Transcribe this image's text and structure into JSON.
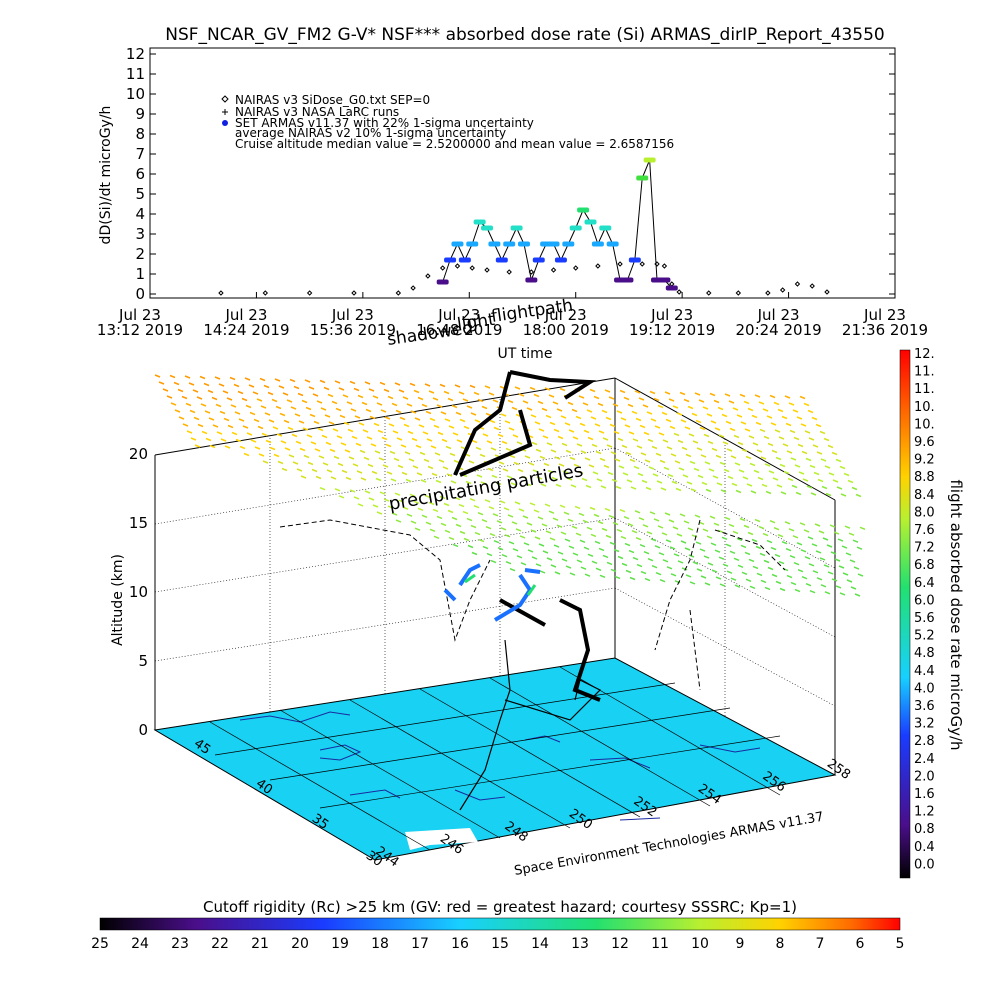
{
  "title": "NSF_NCAR_GV_FM2 G-V* NSF*** absorbed dose rate (Si) ARMAS_dirIP_Report_43550",
  "chart_data": [
    {
      "type": "scatter",
      "ylabel": "dD(Si)/dt microGy/h",
      "xlabel": "UT time",
      "ylim": [
        0,
        12
      ],
      "y_ticks": [
        "0",
        "1",
        "2",
        "3",
        "4",
        "5",
        "6",
        "7",
        "8",
        "9",
        "10",
        "11",
        "12"
      ],
      "x_ticks": [
        {
          "date": "Jul 23",
          "time": "13:12 2019"
        },
        {
          "date": "Jul 23",
          "time": "14:24 2019"
        },
        {
          "date": "Jul 23",
          "time": "15:36 2019"
        },
        {
          "date": "Jul 23",
          "time": "16:48 2019"
        },
        {
          "date": "Jul 23",
          "time": "18:00 2019"
        },
        {
          "date": "Jul 23",
          "time": "19:12 2019"
        },
        {
          "date": "Jul 23",
          "time": "20:24 2019"
        },
        {
          "date": "Jul 23",
          "time": "21:36 2019"
        }
      ],
      "legend": [
        "NAIRAS v3 SiDose_G0.txt SEP=0",
        "NAIRAS v3 NASA LaRC runs",
        "SET ARMAS v11.37 with 22% 1-sigma uncertainty",
        "average NAIRAS v2 10% 1-sigma uncertainty",
        "Cruise altitude median value = 2.5200000 and mean value = 2.6587156"
      ],
      "series": [
        {
          "name": "NAIRAS v3 SiDose_G0.txt SEP=0",
          "x": [
            "14:00",
            "14:30",
            "15:00",
            "15:30",
            "16:00",
            "16:10",
            "16:20",
            "16:30",
            "16:40",
            "16:50",
            "17:00",
            "17:15",
            "17:30",
            "17:45",
            "18:00",
            "18:15",
            "18:30",
            "18:45",
            "18:55",
            "19:00",
            "19:05",
            "19:10",
            "19:30",
            "19:50",
            "20:10",
            "20:20",
            "20:30",
            "20:40",
            "20:50"
          ],
          "values": [
            0.05,
            0.05,
            0.05,
            0.05,
            0.05,
            0.3,
            0.9,
            1.3,
            1.4,
            1.3,
            1.2,
            1.1,
            1.1,
            1.2,
            1.3,
            1.4,
            1.5,
            1.5,
            1.5,
            1.4,
            0.5,
            0.1,
            0.05,
            0.05,
            0.05,
            0.2,
            0.5,
            0.4,
            0.1
          ]
        },
        {
          "name": "SET ARMAS v11.37 with 22% 1-sigma uncertainty",
          "x": [
            "16:30",
            "16:35",
            "16:40",
            "16:45",
            "16:50",
            "16:55",
            "17:00",
            "17:05",
            "17:10",
            "17:15",
            "17:20",
            "17:25",
            "17:30",
            "17:35",
            "17:40",
            "17:45",
            "17:50",
            "17:55",
            "18:00",
            "18:05",
            "18:10",
            "18:15",
            "18:20",
            "18:25",
            "18:30",
            "18:35",
            "18:40",
            "18:45",
            "18:50",
            "18:55",
            "19:00",
            "19:05"
          ],
          "values": [
            0.6,
            1.7,
            2.5,
            1.7,
            2.5,
            3.6,
            3.3,
            2.5,
            1.7,
            2.5,
            3.3,
            2.5,
            0.7,
            1.7,
            2.5,
            2.5,
            1.7,
            2.5,
            3.3,
            4.2,
            3.6,
            2.5,
            3.3,
            2.5,
            0.7,
            0.7,
            1.7,
            5.8,
            6.7,
            0.7,
            0.7,
            0.3
          ]
        }
      ]
    },
    {
      "type": "scatter",
      "zlabel": "Altitude (km)",
      "z_ticks": [
        "0",
        "5",
        "10",
        "15",
        "20"
      ],
      "lat_ticks": [
        "30",
        "35",
        "40",
        "45"
      ],
      "lon_ticks": [
        "244",
        "246",
        "248",
        "250",
        "252",
        "254",
        "256",
        "258"
      ],
      "annotations": [
        "shadowed",
        "light",
        "flightpath",
        "precipitating particles",
        "Space Environment Technologies ARMAS v11.37"
      ],
      "colorbar": {
        "label": "flight absorbed dose rate microGy/h",
        "ticks": [
          "12.",
          "11.",
          "11.",
          "10.",
          "10.",
          "9.6",
          "9.2",
          "8.8",
          "8.4",
          "8.0",
          "7.6",
          "7.2",
          "6.8",
          "6.4",
          "6.0",
          "5.6",
          "5.2",
          "4.8",
          "4.4",
          "4.0",
          "3.6",
          "3.2",
          "2.8",
          "2.4",
          "2.0",
          "1.6",
          "1.2",
          "0.8",
          "0.4",
          "0.0"
        ]
      }
    }
  ],
  "bottom_colorbar": {
    "label": "Cutoff rigidity (Rc) >25 km (GV: red = greatest hazard; courtesy SSSRC; Kp=1)",
    "ticks": [
      "25",
      "24",
      "23",
      "22",
      "21",
      "20",
      "19",
      "18",
      "17",
      "16",
      "15",
      "14",
      "13",
      "12",
      "11",
      "10",
      "9",
      "8",
      "7",
      "6",
      "5"
    ]
  }
}
